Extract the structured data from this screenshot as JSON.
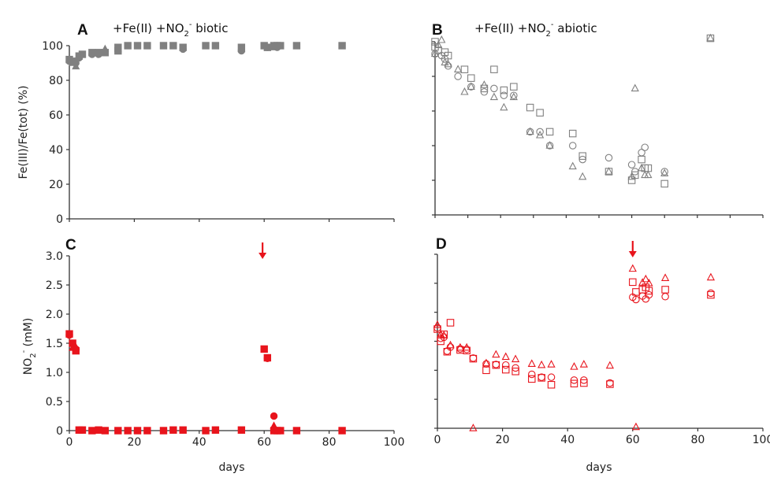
{
  "colors": {
    "gray": "#808080",
    "red": "#e8141c",
    "axis": "#333333"
  },
  "chart_data": [
    {
      "panel": "A",
      "type": "scatter",
      "title": "+Fe(II) +NO2- biotic",
      "title_parts": {
        "prefix": "+Fe(II) +NO",
        "sub": "2",
        "sup": "-",
        "suffix": " biotic"
      },
      "ylabel": "Fe(III)/Fe(tot) (%)",
      "xlabel": "",
      "xlim": [
        0,
        100
      ],
      "ylim": [
        0,
        100
      ],
      "xticks": [
        0,
        20,
        40,
        60,
        80,
        100
      ],
      "yticks": [
        0,
        20,
        40,
        60,
        80,
        100
      ],
      "ytick_labels": [
        "0",
        "20",
        "40",
        "60",
        "80",
        "100"
      ],
      "marker_fill": "filled",
      "color": "#808080",
      "series": [
        {
          "name": "replicate-square",
          "marker": "square",
          "points": [
            [
              0,
              92
            ],
            [
              1,
              91
            ],
            [
              3,
              94
            ],
            [
              4,
              95
            ],
            [
              7,
              96
            ],
            [
              9,
              96
            ],
            [
              11,
              96
            ],
            [
              15,
              97
            ],
            [
              15,
              99
            ],
            [
              18,
              100
            ],
            [
              21,
              100
            ],
            [
              24,
              100
            ],
            [
              29,
              100
            ],
            [
              32,
              100
            ],
            [
              35,
              99
            ],
            [
              42,
              100
            ],
            [
              45,
              100
            ],
            [
              53,
              99
            ],
            [
              60,
              100
            ],
            [
              61,
              99
            ],
            [
              63,
              100
            ],
            [
              64,
              100
            ],
            [
              65,
              100
            ],
            [
              70,
              100
            ],
            [
              84,
              100
            ]
          ]
        },
        {
          "name": "replicate-circle",
          "marker": "circle",
          "points": [
            [
              0,
              91
            ],
            [
              2,
              90
            ],
            [
              3,
              93
            ],
            [
              7,
              95
            ],
            [
              9,
              95
            ],
            [
              35,
              98
            ],
            [
              53,
              97
            ],
            [
              61,
              99
            ],
            [
              64,
              99
            ]
          ]
        },
        {
          "name": "replicate-triangle",
          "marker": "triangle",
          "points": [
            [
              1,
              90
            ],
            [
              2,
              88
            ],
            [
              11,
              98
            ],
            [
              15,
              98
            ],
            [
              53,
              98
            ],
            [
              63,
              99
            ]
          ]
        }
      ]
    },
    {
      "panel": "B",
      "type": "scatter",
      "title": "+Fe(II) +NO2- abiotic",
      "title_parts": {
        "prefix": "+Fe(II) +NO",
        "sub": "2",
        "sup": "-",
        "suffix": " abiotic"
      },
      "ylabel": "",
      "xlabel": "",
      "xlim": [
        0,
        100
      ],
      "ylim": [
        0,
        100
      ],
      "xticks": [
        0,
        10,
        20,
        30,
        40,
        50,
        60,
        70,
        80,
        90,
        100
      ],
      "yticks": [
        0,
        20,
        40,
        60,
        80,
        100
      ],
      "marker_fill": "open",
      "color": "#808080",
      "series": [
        {
          "name": "replicate-square",
          "marker": "square",
          "points": [
            [
              0,
              97
            ],
            [
              0,
              100
            ],
            [
              1,
              95
            ],
            [
              3,
              94
            ],
            [
              4,
              92
            ],
            [
              9,
              84
            ],
            [
              11,
              79
            ],
            [
              15,
              73
            ],
            [
              18,
              84
            ],
            [
              21,
              72
            ],
            [
              24,
              74
            ],
            [
              29,
              62
            ],
            [
              32,
              59
            ],
            [
              35,
              48
            ],
            [
              42,
              47
            ],
            [
              45,
              34
            ],
            [
              53,
              25
            ],
            [
              60,
              20
            ],
            [
              61,
              23
            ],
            [
              63,
              32
            ],
            [
              64,
              27
            ],
            [
              65,
              27
            ],
            [
              70,
              18
            ],
            [
              84,
              102
            ]
          ]
        },
        {
          "name": "replicate-circle",
          "marker": "circle",
          "points": [
            [
              0,
              93
            ],
            [
              2,
              92
            ],
            [
              3,
              90
            ],
            [
              4,
              86
            ],
            [
              7,
              80
            ],
            [
              11,
              74
            ],
            [
              15,
              71
            ],
            [
              18,
              73
            ],
            [
              21,
              69
            ],
            [
              24,
              69
            ],
            [
              29,
              48
            ],
            [
              32,
              48
            ],
            [
              35,
              40
            ],
            [
              42,
              40
            ],
            [
              45,
              32
            ],
            [
              53,
              33
            ],
            [
              60,
              29
            ],
            [
              61,
              25
            ],
            [
              63,
              36
            ],
            [
              64,
              39
            ],
            [
              70,
              25
            ]
          ]
        },
        {
          "name": "replicate-triangle",
          "marker": "triangle",
          "points": [
            [
              0,
              93
            ],
            [
              1,
              98
            ],
            [
              2,
              101
            ],
            [
              3,
              88
            ],
            [
              4,
              87
            ],
            [
              7,
              84
            ],
            [
              9,
              71
            ],
            [
              11,
              74
            ],
            [
              15,
              75
            ],
            [
              18,
              68
            ],
            [
              21,
              62
            ],
            [
              24,
              68
            ],
            [
              29,
              48
            ],
            [
              32,
              46
            ],
            [
              35,
              40
            ],
            [
              42,
              28
            ],
            [
              45,
              22
            ],
            [
              53,
              25
            ],
            [
              60,
              22
            ],
            [
              61,
              73
            ],
            [
              63,
              27
            ],
            [
              64,
              23
            ],
            [
              65,
              23
            ],
            [
              70,
              24
            ],
            [
              84,
              102
            ]
          ]
        }
      ]
    },
    {
      "panel": "C",
      "type": "scatter",
      "title": "",
      "ylabel": "NO2- (mM)",
      "ylabel_parts": {
        "prefix": "NO",
        "sub": "2",
        "sup": "-",
        "suffix": " (mM)"
      },
      "xlabel": "days",
      "xlim": [
        0,
        100
      ],
      "ylim": [
        0,
        3.0
      ],
      "xticks": [
        0,
        20,
        40,
        60,
        80,
        100
      ],
      "xtick_labels": [
        "0",
        "20",
        "40",
        "60",
        "80",
        "100"
      ],
      "yticks": [
        0,
        0.5,
        1.0,
        1.5,
        2.0,
        2.5,
        3.0
      ],
      "ytick_labels": [
        "0",
        "0.5",
        "1.0",
        "1.5",
        "2.0",
        "2.5",
        "3.0"
      ],
      "marker_fill": "filled",
      "color": "#e8141c",
      "annotation": {
        "type": "arrow",
        "x": 59.5,
        "label": ""
      },
      "series": [
        {
          "name": "replicate-square",
          "marker": "square",
          "points": [
            [
              0,
              1.66
            ],
            [
              1,
              1.5
            ],
            [
              2,
              1.37
            ],
            [
              3,
              0.01
            ],
            [
              4,
              0.01
            ],
            [
              7,
              0.0
            ],
            [
              9,
              0.01
            ],
            [
              11,
              0.0
            ],
            [
              15,
              0.0
            ],
            [
              18,
              0.0
            ],
            [
              21,
              0.0
            ],
            [
              24,
              0.0
            ],
            [
              29,
              0.0
            ],
            [
              32,
              0.01
            ],
            [
              35,
              0.01
            ],
            [
              42,
              0.0
            ],
            [
              45,
              0.01
            ],
            [
              53,
              0.01
            ],
            [
              60,
              1.4
            ],
            [
              61,
              1.25
            ],
            [
              63,
              0.0
            ],
            [
              64,
              0.0
            ],
            [
              65,
              0.0
            ],
            [
              70,
              0.0
            ],
            [
              84,
              0.0
            ]
          ]
        },
        {
          "name": "replicate-circle",
          "marker": "circle",
          "points": [
            [
              0,
              1.64
            ],
            [
              2,
              1.4
            ],
            [
              61,
              1.24
            ],
            [
              63,
              0.25
            ]
          ]
        },
        {
          "name": "replicate-triangle",
          "marker": "triangle",
          "points": [
            [
              1,
              1.42
            ],
            [
              2,
              1.43
            ],
            [
              63,
              0.08
            ]
          ]
        }
      ]
    },
    {
      "panel": "D",
      "type": "scatter",
      "title": "",
      "ylabel": "",
      "xlabel": "days",
      "xlim": [
        0,
        100
      ],
      "ylim": [
        0,
        3.0
      ],
      "xticks": [
        0,
        20,
        40,
        60,
        80,
        100
      ],
      "xtick_labels": [
        "0",
        "20",
        "40",
        "60",
        "80",
        "100"
      ],
      "yticks": [
        0,
        0.5,
        1.0,
        1.5,
        2.0,
        2.5,
        3.0
      ],
      "marker_fill": "open",
      "color": "#e8141c",
      "annotation": {
        "type": "arrow",
        "x": 60,
        "label": ""
      },
      "series": [
        {
          "name": "replicate-square",
          "marker": "square",
          "points": [
            [
              0,
              1.71
            ],
            [
              1,
              1.5
            ],
            [
              2,
              1.62
            ],
            [
              3,
              1.32
            ],
            [
              4,
              1.82
            ],
            [
              7,
              1.35
            ],
            [
              9,
              1.34
            ],
            [
              11,
              1.2
            ],
            [
              15,
              1.0
            ],
            [
              18,
              1.09
            ],
            [
              21,
              1.01
            ],
            [
              24,
              0.98
            ],
            [
              29,
              0.85
            ],
            [
              32,
              0.87
            ],
            [
              35,
              0.75
            ],
            [
              42,
              0.77
            ],
            [
              45,
              0.78
            ],
            [
              53,
              0.76
            ],
            [
              60,
              2.52
            ],
            [
              61,
              2.35
            ],
            [
              63,
              2.39
            ],
            [
              64,
              2.43
            ],
            [
              65,
              2.37
            ],
            [
              70,
              2.39
            ],
            [
              84,
              2.3
            ]
          ]
        },
        {
          "name": "replicate-circle",
          "marker": "circle",
          "points": [
            [
              0,
              1.73
            ],
            [
              1,
              1.55
            ],
            [
              2,
              1.57
            ],
            [
              3,
              1.33
            ],
            [
              4,
              1.4
            ],
            [
              7,
              1.37
            ],
            [
              9,
              1.36
            ],
            [
              11,
              1.21
            ],
            [
              15,
              1.11
            ],
            [
              18,
              1.1
            ],
            [
              21,
              1.09
            ],
            [
              24,
              1.04
            ],
            [
              29,
              0.93
            ],
            [
              32,
              0.88
            ],
            [
              35,
              0.88
            ],
            [
              42,
              0.83
            ],
            [
              45,
              0.83
            ],
            [
              53,
              0.78
            ],
            [
              60,
              2.26
            ],
            [
              61,
              2.22
            ],
            [
              63,
              2.28
            ],
            [
              64,
              2.23
            ],
            [
              65,
              2.3
            ],
            [
              70,
              2.27
            ],
            [
              84,
              2.33
            ]
          ]
        },
        {
          "name": "replicate-triangle",
          "marker": "triangle",
          "points": [
            [
              0,
              1.78
            ],
            [
              1,
              1.62
            ],
            [
              2,
              1.6
            ],
            [
              4,
              1.43
            ],
            [
              7,
              1.39
            ],
            [
              9,
              1.39
            ],
            [
              11,
              0.0
            ],
            [
              15,
              1.12
            ],
            [
              18,
              1.27
            ],
            [
              21,
              1.23
            ],
            [
              24,
              1.19
            ],
            [
              29,
              1.11
            ],
            [
              32,
              1.09
            ],
            [
              35,
              1.1
            ],
            [
              42,
              1.06
            ],
            [
              45,
              1.1
            ],
            [
              53,
              1.08
            ],
            [
              60,
              2.75
            ],
            [
              61,
              0.02
            ],
            [
              63,
              2.51
            ],
            [
              64,
              2.57
            ],
            [
              65,
              2.5
            ],
            [
              70,
              2.59
            ],
            [
              84,
              2.6
            ]
          ]
        }
      ]
    }
  ]
}
